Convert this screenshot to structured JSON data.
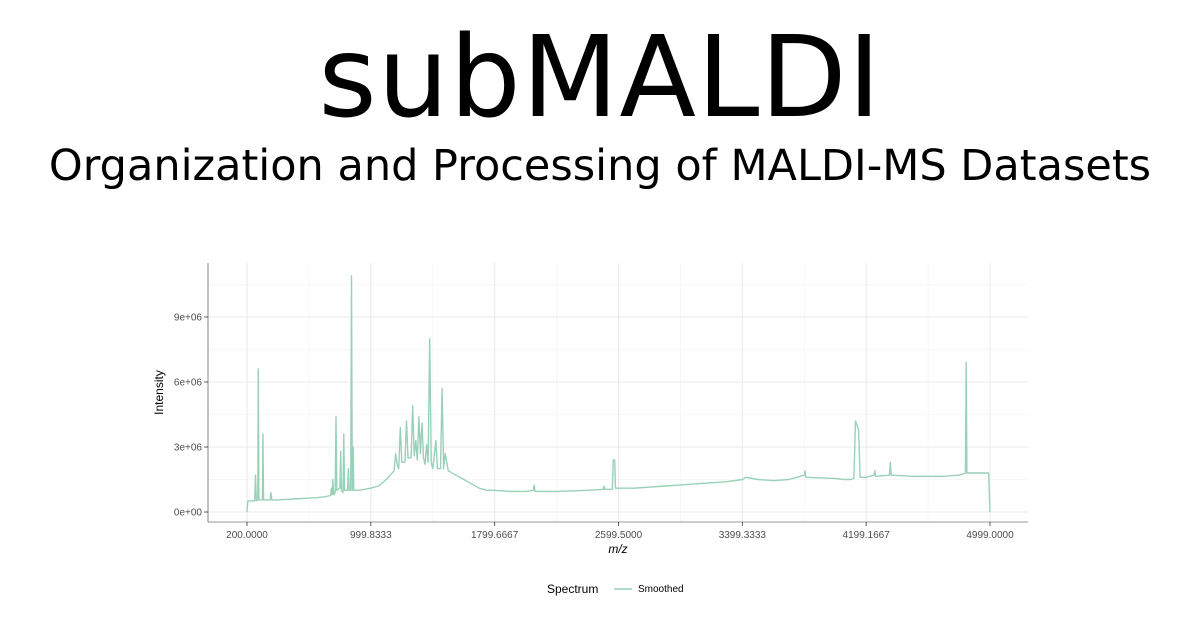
{
  "header": {
    "title": "subMALDI",
    "subtitle": "Organization and Processing of MALDI-MS Datasets"
  },
  "colors": {
    "series": "#99d1b8",
    "grid": "#ebebeb",
    "axis": "#333333"
  },
  "chart_data": {
    "type": "line",
    "xlabel": "m/z",
    "ylabel": "Intensity",
    "xlim": [
      200,
      4999
    ],
    "ylim": [
      0,
      9000000
    ],
    "x_ticks": [
      200.0,
      999.8333,
      1799.6667,
      2599.5,
      3399.3333,
      4199.1667,
      4999.0
    ],
    "x_tick_labels": [
      "200.0000",
      "999.8333",
      "1799.6667",
      "2599.5000",
      "3399.3333",
      "4199.1667",
      "4999.0000"
    ],
    "y_ticks": [
      0,
      3000000,
      6000000,
      9000000
    ],
    "y_tick_labels": [
      "0e+00",
      "3e+06",
      "6e+06",
      "9e+06"
    ],
    "grid": true,
    "legend": {
      "title": "Spectrum",
      "position": "bottom",
      "entries": [
        "Smoothed"
      ]
    },
    "series": [
      {
        "name": "Smoothed",
        "points": [
          [
            200,
            0
          ],
          [
            205,
            500000
          ],
          [
            250,
            520000
          ],
          [
            255,
            1700000
          ],
          [
            260,
            520000
          ],
          [
            270,
            560000
          ],
          [
            273,
            6600000
          ],
          [
            277,
            560000
          ],
          [
            300,
            560000
          ],
          [
            303,
            3600000
          ],
          [
            307,
            560000
          ],
          [
            350,
            560000
          ],
          [
            355,
            900000
          ],
          [
            360,
            560000
          ],
          [
            400,
            560000
          ],
          [
            500,
            600000
          ],
          [
            600,
            640000
          ],
          [
            650,
            660000
          ],
          [
            700,
            700000
          ],
          [
            740,
            760000
          ],
          [
            745,
            1100000
          ],
          [
            750,
            800000
          ],
          [
            755,
            1500000
          ],
          [
            760,
            800000
          ],
          [
            770,
            900000
          ],
          [
            775,
            4400000
          ],
          [
            780,
            1000000
          ],
          [
            800,
            1100000
          ],
          [
            805,
            2800000
          ],
          [
            810,
            1000000
          ],
          [
            820,
            900000
          ],
          [
            825,
            3600000
          ],
          [
            830,
            1000000
          ],
          [
            850,
            1000000
          ],
          [
            855,
            2000000
          ],
          [
            860,
            1000000
          ],
          [
            870,
            1000000
          ],
          [
            875,
            10900000
          ],
          [
            880,
            1000000
          ],
          [
            885,
            3000000
          ],
          [
            890,
            1000000
          ],
          [
            920,
            1000000
          ],
          [
            960,
            1050000
          ],
          [
            1000,
            1100000
          ],
          [
            1050,
            1200000
          ],
          [
            1100,
            1500000
          ],
          [
            1150,
            1900000
          ],
          [
            1160,
            2700000
          ],
          [
            1170,
            2200000
          ],
          [
            1180,
            2000000
          ],
          [
            1190,
            3900000
          ],
          [
            1200,
            2300000
          ],
          [
            1220,
            2300000
          ],
          [
            1230,
            4200000
          ],
          [
            1240,
            2500000
          ],
          [
            1260,
            2500000
          ],
          [
            1270,
            4900000
          ],
          [
            1280,
            2600000
          ],
          [
            1290,
            3300000
          ],
          [
            1300,
            2400000
          ],
          [
            1310,
            4400000
          ],
          [
            1320,
            2700000
          ],
          [
            1330,
            4100000
          ],
          [
            1340,
            2500000
          ],
          [
            1350,
            2200000
          ],
          [
            1360,
            3100000
          ],
          [
            1370,
            2300000
          ],
          [
            1380,
            8000000
          ],
          [
            1390,
            2300000
          ],
          [
            1400,
            2000000
          ],
          [
            1420,
            3300000
          ],
          [
            1430,
            2000000
          ],
          [
            1450,
            2000000
          ],
          [
            1460,
            5700000
          ],
          [
            1470,
            2000000
          ],
          [
            1480,
            2700000
          ],
          [
            1500,
            1900000
          ],
          [
            1550,
            1700000
          ],
          [
            1600,
            1500000
          ],
          [
            1650,
            1300000
          ],
          [
            1700,
            1100000
          ],
          [
            1750,
            1000000
          ],
          [
            1800,
            1000000
          ],
          [
            1900,
            950000
          ],
          [
            2000,
            950000
          ],
          [
            2050,
            1000000
          ],
          [
            2055,
            1250000
          ],
          [
            2060,
            950000
          ],
          [
            2200,
            950000
          ],
          [
            2400,
            1000000
          ],
          [
            2500,
            1050000
          ],
          [
            2505,
            1200000
          ],
          [
            2510,
            1050000
          ],
          [
            2560,
            1050000
          ],
          [
            2565,
            2400000
          ],
          [
            2575,
            2400000
          ],
          [
            2580,
            1100000
          ],
          [
            2700,
            1100000
          ],
          [
            2900,
            1200000
          ],
          [
            3000,
            1250000
          ],
          [
            3100,
            1300000
          ],
          [
            3200,
            1350000
          ],
          [
            3300,
            1400000
          ],
          [
            3400,
            1500000
          ],
          [
            3420,
            1600000
          ],
          [
            3500,
            1500000
          ],
          [
            3600,
            1450000
          ],
          [
            3700,
            1500000
          ],
          [
            3750,
            1600000
          ],
          [
            3800,
            1700000
          ],
          [
            3805,
            1900000
          ],
          [
            3810,
            1600000
          ],
          [
            4000,
            1550000
          ],
          [
            4050,
            1500000
          ],
          [
            4100,
            1500000
          ],
          [
            4120,
            1550000
          ],
          [
            4130,
            4200000
          ],
          [
            4150,
            3800000
          ],
          [
            4160,
            1600000
          ],
          [
            4200,
            1600000
          ],
          [
            4250,
            1700000
          ],
          [
            4255,
            1900000
          ],
          [
            4260,
            1650000
          ],
          [
            4350,
            1700000
          ],
          [
            4355,
            2300000
          ],
          [
            4360,
            1700000
          ],
          [
            4500,
            1650000
          ],
          [
            4700,
            1650000
          ],
          [
            4800,
            1700000
          ],
          [
            4840,
            1800000
          ],
          [
            4845,
            6900000
          ],
          [
            4850,
            1800000
          ],
          [
            4900,
            1800000
          ],
          [
            4990,
            1800000
          ],
          [
            4999,
            0
          ]
        ]
      }
    ]
  }
}
